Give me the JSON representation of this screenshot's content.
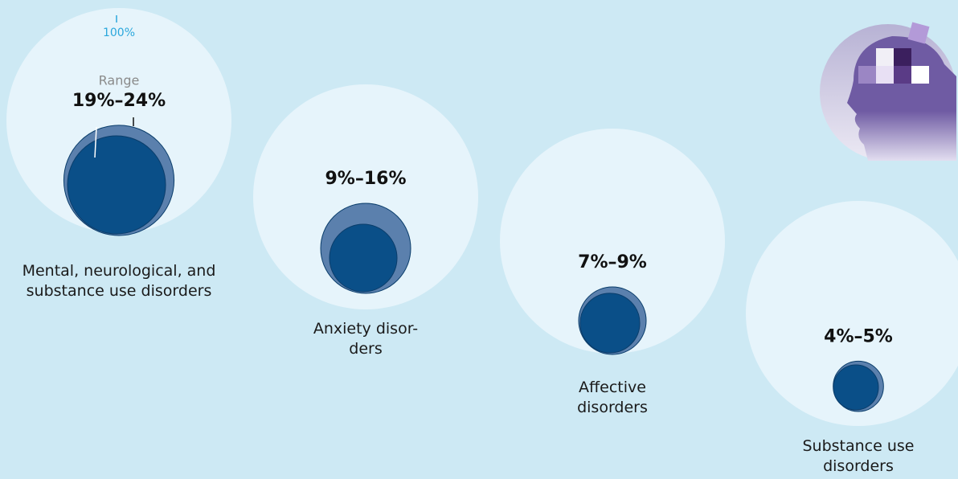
{
  "chart_data": {
    "type": "bubble-range",
    "categories": [
      "Mental, neurological, and\nsubstance use disorders",
      "Anxiety disor-\nders",
      "Affective\ndisorders",
      "Substance use\ndisorders"
    ],
    "series": [
      {
        "color": "#5b80ad",
        "values": [
          24,
          16,
          9,
          5
        ]
      },
      {
        "color": "#0a4f88",
        "values": [
          19,
          9,
          7,
          4
        ]
      }
    ],
    "value_labels": [
      "19%–24%",
      "9%–16%",
      "7%–9%",
      "4%–5%"
    ],
    "range_label": "Range",
    "reference": {
      "value": 100,
      "label": "100%",
      "color": "#e6f4fb"
    }
  }
}
